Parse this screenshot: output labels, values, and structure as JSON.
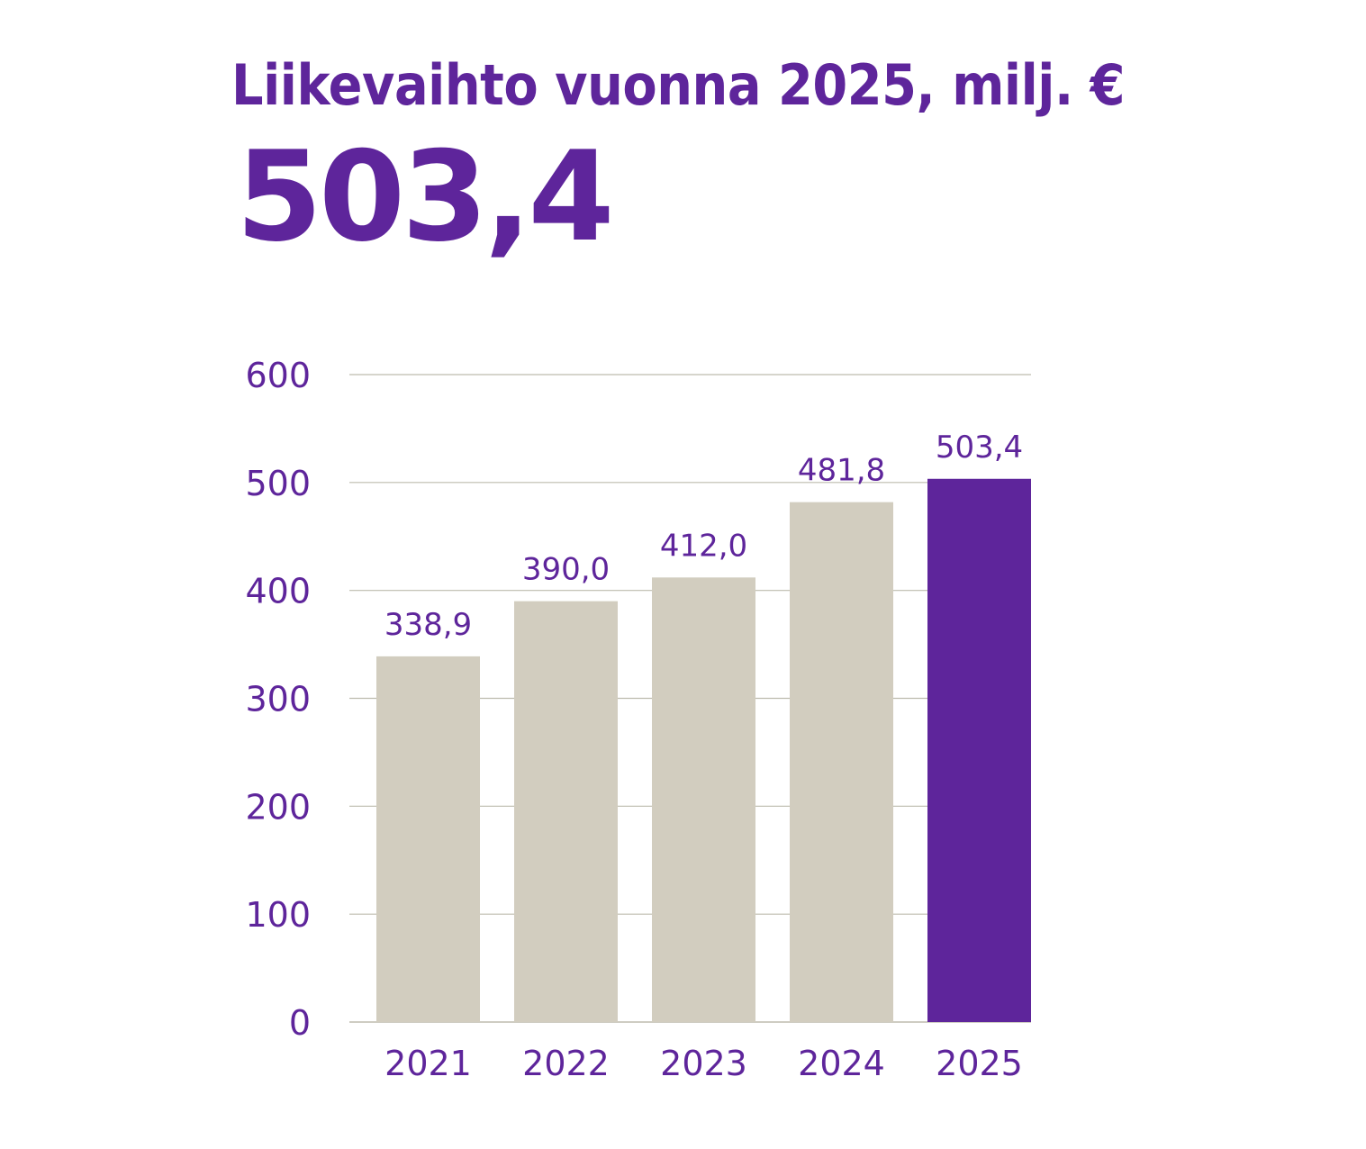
{
  "header": {
    "title": "Liikevaihto vuonna 2025, milj. €",
    "highlight_value": "503,4"
  },
  "colors": {
    "accent": "#5e259b",
    "bar_default": "#d2cdbf",
    "grid": "#bdbcae"
  },
  "chart_data": {
    "type": "bar",
    "title": "Liikevaihto vuonna 2025, milj. €",
    "xlabel": "",
    "ylabel": "",
    "categories": [
      "2021",
      "2022",
      "2023",
      "2024",
      "2025"
    ],
    "values": [
      338.9,
      390.0,
      412.0,
      481.8,
      503.4
    ],
    "value_labels": [
      "338,9",
      "390,0",
      "412,0",
      "481,8",
      "503,4"
    ],
    "highlight_index": 4,
    "ylim": [
      0,
      600
    ],
    "yticks": [
      0,
      100,
      200,
      300,
      400,
      500,
      600
    ],
    "grid": true,
    "legend": "none"
  }
}
